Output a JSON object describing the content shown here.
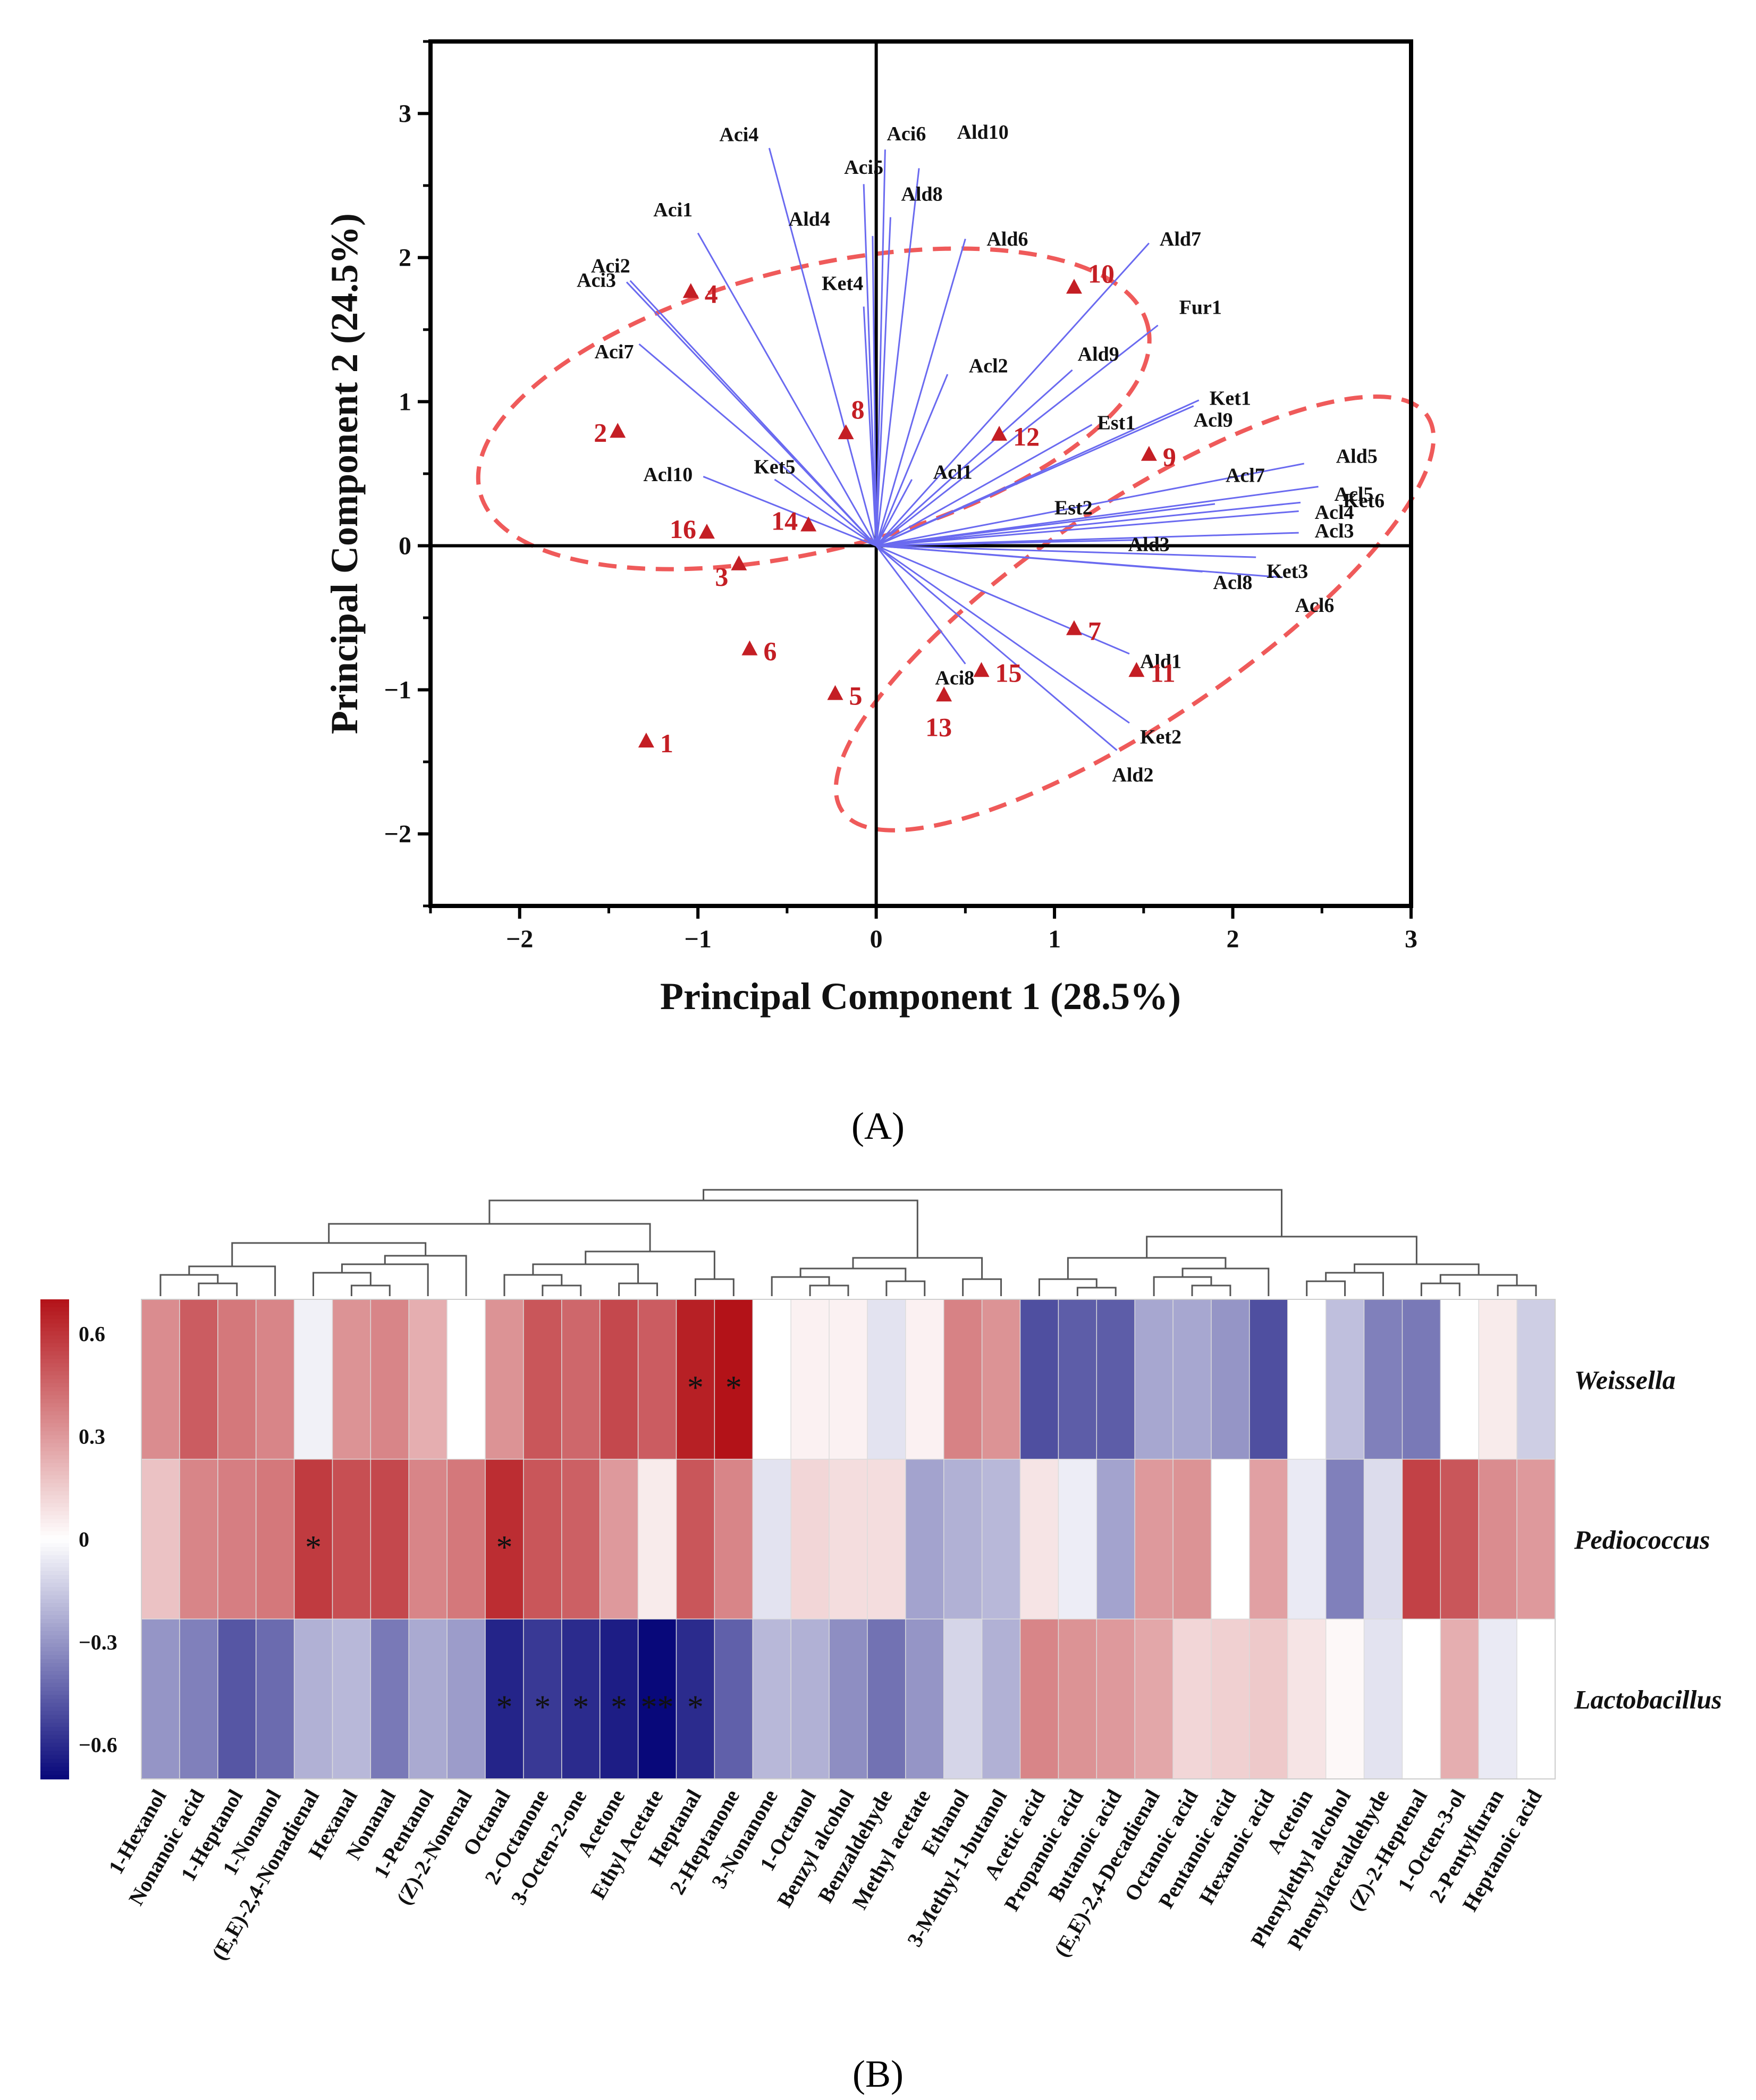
{
  "panel_a_label": "(A)",
  "panel_b_label": "(B)",
  "colors": {
    "vector": "#6a6af0",
    "score": "#c41e24",
    "ellipse": "#ef5a5a",
    "heat_low": "#08087a",
    "heat_mid": "#ffffff",
    "heat_high": "#b31218"
  },
  "chart_data": [
    {
      "type": "scatter",
      "title": "",
      "xlabel": "Principal Component 1 (28.5%)",
      "ylabel": "Principal Component 2 (24.5%)",
      "xlim": [
        -2.5,
        3
      ],
      "ylim": [
        -2.5,
        3.5
      ],
      "xticks": [
        "-2",
        "-1",
        "0",
        "1",
        "2",
        "3"
      ],
      "yticks": [
        "3",
        "2",
        "1",
        "0",
        "-1",
        "-2"
      ],
      "grid": false,
      "scores": [
        {
          "label": "1",
          "x": -1.29,
          "y": -1.36
        },
        {
          "label": "2",
          "x": -1.45,
          "y": 0.79
        },
        {
          "label": "3",
          "x": -0.77,
          "y": -0.13
        },
        {
          "label": "4",
          "x": -1.04,
          "y": 1.76
        },
        {
          "label": "5",
          "x": -0.23,
          "y": -1.03
        },
        {
          "label": "6",
          "x": -0.71,
          "y": -0.72
        },
        {
          "label": "7",
          "x": 1.11,
          "y": -0.58
        },
        {
          "label": "8",
          "x": -0.17,
          "y": 0.78
        },
        {
          "label": "9",
          "x": 1.53,
          "y": 0.63
        },
        {
          "label": "10",
          "x": 1.11,
          "y": 1.79
        },
        {
          "label": "11",
          "x": 1.46,
          "y": -0.87
        },
        {
          "label": "12",
          "x": 0.69,
          "y": 0.77
        },
        {
          "label": "13",
          "x": 0.38,
          "y": -1.04
        },
        {
          "label": "14",
          "x": -0.38,
          "y": 0.14
        },
        {
          "label": "15",
          "x": 0.59,
          "y": -0.87
        },
        {
          "label": "16",
          "x": -0.95,
          "y": 0.09
        }
      ],
      "loadings": [
        {
          "label": "Aci1",
          "x": -1.0,
          "y": 2.17
        },
        {
          "label": "Aci2",
          "x": -1.38,
          "y": 1.84
        },
        {
          "label": "Aci3",
          "x": -1.4,
          "y": 1.83
        },
        {
          "label": "Aci4",
          "x": -0.6,
          "y": 2.76
        },
        {
          "label": "Aci5",
          "x": -0.07,
          "y": 2.51
        },
        {
          "label": "Aci6",
          "x": 0.05,
          "y": 2.75
        },
        {
          "label": "Aci7",
          "x": -1.33,
          "y": 1.4
        },
        {
          "label": "Aci8",
          "x": 0.5,
          "y": -0.82
        },
        {
          "label": "Ald1",
          "x": 1.42,
          "y": -0.75
        },
        {
          "label": "Ald2",
          "x": 1.35,
          "y": -1.42
        },
        {
          "label": "Ald3",
          "x": 1.47,
          "y": 0.04
        },
        {
          "label": "Ald4",
          "x": -0.02,
          "y": 2.15
        },
        {
          "label": "Ald5",
          "x": 2.4,
          "y": 0.57
        },
        {
          "label": "Ald6",
          "x": 0.5,
          "y": 2.13
        },
        {
          "label": "Ald7",
          "x": 1.53,
          "y": 2.1
        },
        {
          "label": "Ald8",
          "x": 0.08,
          "y": 2.28
        },
        {
          "label": "Ald9",
          "x": 1.1,
          "y": 1.22
        },
        {
          "label": "Ald10",
          "x": 0.24,
          "y": 2.62
        },
        {
          "label": "Acl1",
          "x": 0.2,
          "y": 0.46
        },
        {
          "label": "Acl2",
          "x": 0.4,
          "y": 1.19
        },
        {
          "label": "Acl3",
          "x": 2.37,
          "y": 0.09
        },
        {
          "label": "Acl4",
          "x": 2.37,
          "y": 0.24
        },
        {
          "label": "Acl5",
          "x": 2.48,
          "y": 0.41
        },
        {
          "label": "Acl6",
          "x": 2.28,
          "y": -0.22
        },
        {
          "label": "Acl7",
          "x": 1.9,
          "y": 0.29
        },
        {
          "label": "Acl8",
          "x": 1.83,
          "y": -0.18
        },
        {
          "label": "Acl9",
          "x": 1.78,
          "y": 0.97
        },
        {
          "label": "Acl10",
          "x": -0.97,
          "y": 0.48
        },
        {
          "label": "Est1",
          "x": 1.21,
          "y": 0.84
        },
        {
          "label": "Est2",
          "x": 0.91,
          "y": 0.14
        },
        {
          "label": "Ket1",
          "x": 1.81,
          "y": 1.01
        },
        {
          "label": "Ket2",
          "x": 1.42,
          "y": -1.23
        },
        {
          "label": "Ket3",
          "x": 2.13,
          "y": -0.08
        },
        {
          "label": "Ket4",
          "x": -0.07,
          "y": 1.66
        },
        {
          "label": "Ket5",
          "x": -0.57,
          "y": 0.46
        },
        {
          "label": "Ket6",
          "x": 2.38,
          "y": 0.3
        },
        {
          "label": "Fur1",
          "x": 1.58,
          "y": 1.53
        }
      ],
      "groups": [
        {
          "description": "upper-left cluster",
          "cx": -0.35,
          "cy": 0.95,
          "rx": 1.93,
          "ry": 0.98,
          "angle_deg": 14
        },
        {
          "description": "lower-right cluster",
          "cx": 1.45,
          "cy": -0.47,
          "rx": 1.98,
          "ry": 0.75,
          "angle_deg": 34
        }
      ]
    },
    {
      "type": "heatmap",
      "title": "",
      "rows": [
        "Weissella",
        "Pediococcus",
        "Lactobacillus"
      ],
      "columns": [
        "1-Hexanol",
        "Nonanoic acid",
        "1-Heptanol",
        "1-Nonanol",
        "(E,E)-2,4-Nonadienal",
        "Hexanal",
        "Nonanal",
        "1-Pentanol",
        "(Z)-2-Nonenal",
        "Octanal",
        "2-Octanone",
        "3-Octen-2-one",
        "Acetone",
        "Ethyl Acetate",
        "Heptanal",
        "2-Heptanone",
        "3-Nonanone",
        "1-Octanol",
        "Benzyl alcohol",
        "Benzaldehyde",
        "Methyl acetate",
        "Ethanol",
        "3-Methyl-1-butanol",
        "Acetic acid",
        "Propanoic acid",
        "Butanoic acid",
        "(E,E)-2,4-Decadienal",
        "Octanoic acid",
        "Pentanoic acid",
        "Hexanoic acid",
        "Acetoin",
        "Phenylethyl alcohol",
        "Phenylacetaldehyde",
        "(Z)-2-Heptenal",
        "1-Octen-3-ol",
        "2-Pentylfuran",
        "Heptanoic acid"
      ],
      "values": [
        [
          0.34,
          0.48,
          0.4,
          0.36,
          -0.04,
          0.32,
          0.36,
          0.24,
          0.0,
          0.32,
          0.5,
          0.45,
          0.54,
          0.48,
          0.66,
          0.7,
          0.0,
          0.04,
          0.04,
          -0.08,
          0.04,
          0.37,
          0.32,
          -0.5,
          -0.46,
          -0.46,
          -0.25,
          -0.25,
          -0.3,
          -0.5,
          0.0,
          -0.18,
          -0.36,
          -0.38,
          0.0,
          0.06,
          -0.14
        ],
        [
          0.18,
          0.36,
          0.38,
          0.4,
          0.58,
          0.52,
          0.54,
          0.36,
          0.4,
          0.62,
          0.5,
          0.47,
          0.3,
          0.06,
          0.5,
          0.36,
          -0.08,
          0.12,
          0.1,
          0.1,
          -0.26,
          -0.22,
          -0.2,
          0.08,
          -0.05,
          -0.26,
          0.3,
          0.32,
          0.0,
          0.28,
          -0.06,
          -0.36,
          -0.1,
          0.56,
          0.5,
          0.34,
          0.3
        ],
        [
          -0.3,
          -0.36,
          -0.48,
          -0.42,
          -0.22,
          -0.2,
          -0.38,
          -0.24,
          -0.28,
          -0.62,
          -0.56,
          -0.6,
          -0.64,
          -0.72,
          -0.6,
          -0.45,
          -0.2,
          -0.22,
          -0.32,
          -0.4,
          -0.3,
          -0.12,
          -0.22,
          0.36,
          0.32,
          0.3,
          0.26,
          0.12,
          0.14,
          0.16,
          0.08,
          0.02,
          -0.08,
          0.0,
          0.24,
          -0.06,
          0.0
        ]
      ],
      "significant": [
        {
          "row": "Weissella",
          "column": "Heptanal",
          "mark": "*"
        },
        {
          "row": "Weissella",
          "column": "2-Heptanone",
          "mark": "*"
        },
        {
          "row": "Pediococcus",
          "column": "(E,E)-2,4-Nonadienal",
          "mark": "*"
        },
        {
          "row": "Pediococcus",
          "column": "Octanal",
          "mark": "*"
        },
        {
          "row": "Lactobacillus",
          "column": "Octanal",
          "mark": "*"
        },
        {
          "row": "Lactobacillus",
          "column": "2-Octanone",
          "mark": "*"
        },
        {
          "row": "Lactobacillus",
          "column": "3-Octen-2-one",
          "mark": "*"
        },
        {
          "row": "Lactobacillus",
          "column": "Acetone",
          "mark": "*"
        },
        {
          "row": "Lactobacillus",
          "column": "Ethyl Acetate",
          "mark": "**"
        },
        {
          "row": "Lactobacillus",
          "column": "Heptanal",
          "mark": "*"
        }
      ],
      "colorbar": {
        "min": -0.7,
        "max": 0.7,
        "ticks": [
          "0.6",
          "0.3",
          "0",
          "−0.3",
          "−0.6"
        ]
      },
      "column_dendrogram": true
    }
  ]
}
